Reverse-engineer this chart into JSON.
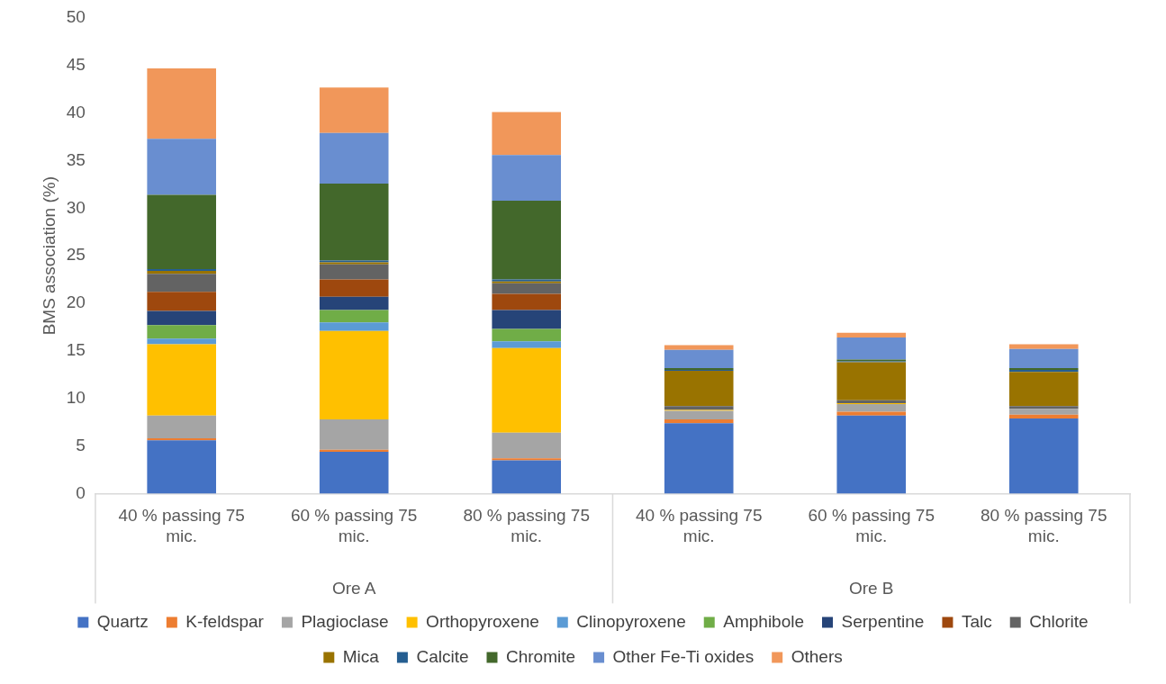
{
  "chart_data": {
    "type": "bar",
    "stacked": true,
    "ylabel": "BMS association (%)",
    "categories": [
      "40 % passing 75 mic.",
      "60 % passing 75 mic.",
      "80 % passing 75 mic.",
      "40 % passing 75 mic.",
      "60 % passing 75 mic.",
      "80 % passing 75 mic."
    ],
    "annotations": [
      "Ore A",
      "Ore B"
    ],
    "series": [
      {
        "name": "Quartz",
        "color": "#4472c4",
        "values": [
          5.6,
          4.4,
          3.5,
          7.4,
          8.2,
          7.9
        ]
      },
      {
        "name": "K-feldspar",
        "color": "#ed7d31",
        "values": [
          0.2,
          0.2,
          0.2,
          0.4,
          0.4,
          0.4
        ]
      },
      {
        "name": "Plagioclase",
        "color": "#a5a5a5",
        "values": [
          2.4,
          3.2,
          2.7,
          0.9,
          0.8,
          0.6
        ]
      },
      {
        "name": "Orthopyroxene",
        "color": "#ffc000",
        "values": [
          7.5,
          9.3,
          8.9,
          0.1,
          0.1,
          0
        ]
      },
      {
        "name": "Clinopyroxene",
        "color": "#5b9bd5",
        "values": [
          0.6,
          0.9,
          0.7,
          0,
          0,
          0
        ]
      },
      {
        "name": "Amphibole",
        "color": "#70ad47",
        "values": [
          1.4,
          1.3,
          1.3,
          0,
          0,
          0
        ]
      },
      {
        "name": "Serpentine",
        "color": "#264478",
        "values": [
          1.5,
          1.4,
          2.0,
          0,
          0,
          0
        ]
      },
      {
        "name": "Talc",
        "color": "#9e480e",
        "values": [
          2.0,
          1.8,
          1.7,
          0,
          0,
          0
        ]
      },
      {
        "name": "Chlorite",
        "color": "#636363",
        "values": [
          1.9,
          1.6,
          1.1,
          0.4,
          0.3,
          0.3
        ]
      },
      {
        "name": "Mica",
        "color": "#997300",
        "values": [
          0.3,
          0.2,
          0.2,
          3.7,
          4.0,
          3.6
        ]
      },
      {
        "name": "Calcite",
        "color": "#255e91",
        "values": [
          0.2,
          0.2,
          0.2,
          0.1,
          0.1,
          0.2
        ]
      },
      {
        "name": "Chromite",
        "color": "#43682b",
        "values": [
          7.8,
          8.1,
          8.3,
          0.2,
          0.2,
          0.2
        ]
      },
      {
        "name": "Other Fe-Ti oxides",
        "color": "#698ed0",
        "values": [
          5.9,
          5.3,
          4.8,
          1.9,
          2.3,
          2.0
        ]
      },
      {
        "name": "Others",
        "color": "#f1975a",
        "values": [
          7.4,
          4.8,
          4.5,
          0.5,
          0.5,
          0.5
        ]
      }
    ],
    "ylim": [
      0,
      50
    ],
    "yticks": [
      0,
      5,
      10,
      15,
      20,
      25,
      30,
      35,
      40,
      45,
      50
    ],
    "grid": false,
    "legend": "bottom"
  }
}
